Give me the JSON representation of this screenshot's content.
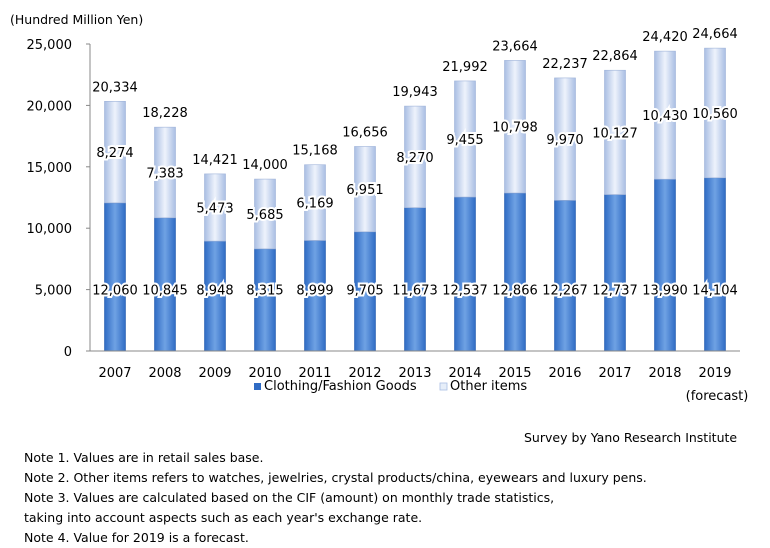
{
  "unit_label": "(Hundred Million Yen)",
  "source": "Survey by Yano Research Institute",
  "notes": [
    "Note 1. Values are in retail sales base.",
    "Note 2. Other items refers to watches, jewelries, crystal products/china, eyewears and luxury pens.",
    "Note 3. Values are calculated based on the CIF (amount) on monthly trade statistics,",
    "taking into account aspects such as each year's exchange rate.",
    "Note 4. Value for 2019 is a forecast."
  ],
  "colors": {
    "clothing_dark": "#2F6BC4",
    "clothing_light": "#6FA2E4",
    "other_dark": "#A9BEE3",
    "other_light": "#EEF3FC",
    "axis": "#888888"
  },
  "chart_data": {
    "type": "bar",
    "stacked": true,
    "categories": [
      "2007",
      "2008",
      "2009",
      "2010",
      "2011",
      "2012",
      "2013",
      "2014",
      "2015",
      "2016",
      "2017",
      "2018",
      "2019"
    ],
    "category_sublabels": [
      "",
      "",
      "",
      "",
      "",
      "",
      "",
      "",
      "",
      "",
      "",
      "",
      "(forecast)"
    ],
    "series": [
      {
        "name": "Clothing/Fashion Goods",
        "values": [
          12060,
          10845,
          8948,
          8315,
          8999,
          9705,
          11673,
          12537,
          12866,
          12267,
          12737,
          13990,
          14104
        ]
      },
      {
        "name": "Other items",
        "values": [
          8274,
          7383,
          5473,
          5685,
          6169,
          6951,
          8270,
          9455,
          10798,
          9970,
          10127,
          10430,
          10560
        ]
      }
    ],
    "totals": [
      20334,
      18228,
      14421,
      14000,
      15168,
      16656,
      19943,
      21992,
      23664,
      22237,
      22864,
      24420,
      24664
    ],
    "y_ticks": [
      0,
      5000,
      10000,
      15000,
      20000,
      25000
    ],
    "ylim": [
      0,
      25000
    ],
    "title": "",
    "xlabel": "",
    "ylabel": "(Hundred Million Yen)",
    "legend": "bottom-center"
  }
}
